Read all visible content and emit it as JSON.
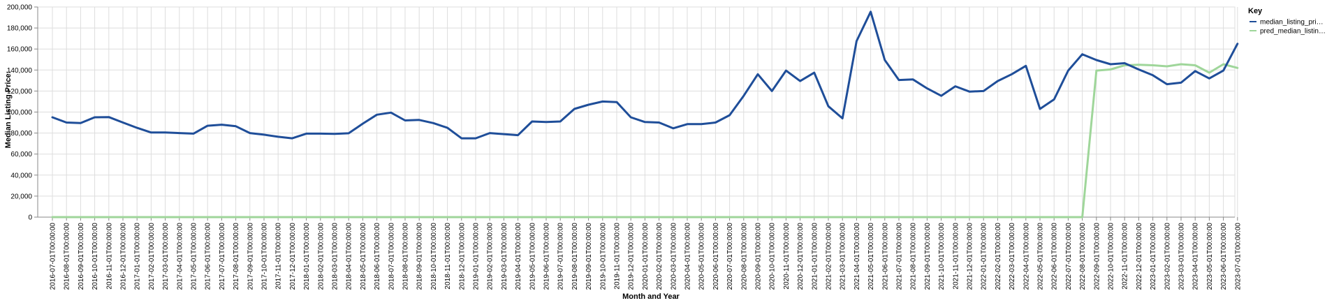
{
  "chart_data": {
    "type": "line",
    "xlabel": "Month and Year",
    "ylabel": "Median Listing Price:",
    "ylim": [
      0,
      200000
    ],
    "yticks": [
      0,
      20000,
      40000,
      60000,
      80000,
      100000,
      120000,
      140000,
      160000,
      180000,
      200000
    ],
    "ytick_labels": [
      "0",
      "20,000",
      "40,000",
      "60,000",
      "80,000",
      "100,000",
      "120,000",
      "140,000",
      "160,000",
      "180,000",
      "200,000"
    ],
    "grid": true,
    "legend": {
      "title": "Key",
      "placement": "top-right"
    },
    "categories": [
      "2016-07-01T00:00:00",
      "2016-08-01T00:00:00",
      "2016-09-01T00:00:00",
      "2016-10-01T00:00:00",
      "2016-11-01T00:00:00",
      "2016-12-01T00:00:00",
      "2017-01-01T00:00:00",
      "2017-02-01T00:00:00",
      "2017-03-01T00:00:00",
      "2017-04-01T00:00:00",
      "2017-05-01T00:00:00",
      "2017-06-01T00:00:00",
      "2017-07-01T00:00:00",
      "2017-08-01T00:00:00",
      "2017-09-01T00:00:00",
      "2017-10-01T00:00:00",
      "2017-11-01T00:00:00",
      "2017-12-01T00:00:00",
      "2018-01-01T00:00:00",
      "2018-02-01T00:00:00",
      "2018-03-01T00:00:00",
      "2018-04-01T00:00:00",
      "2018-05-01T00:00:00",
      "2018-06-01T00:00:00",
      "2018-07-01T00:00:00",
      "2018-08-01T00:00:00",
      "2018-09-01T00:00:00",
      "2018-10-01T00:00:00",
      "2018-11-01T00:00:00",
      "2018-12-01T00:00:00",
      "2019-01-01T00:00:00",
      "2019-02-01T00:00:00",
      "2019-03-01T00:00:00",
      "2019-04-01T00:00:00",
      "2019-05-01T00:00:00",
      "2019-06-01T00:00:00",
      "2019-07-01T00:00:00",
      "2019-08-01T00:00:00",
      "2019-09-01T00:00:00",
      "2019-10-01T00:00:00",
      "2019-11-01T00:00:00",
      "2019-12-01T00:00:00",
      "2020-01-01T00:00:00",
      "2020-02-01T00:00:00",
      "2020-03-01T00:00:00",
      "2020-04-01T00:00:00",
      "2020-05-01T00:00:00",
      "2020-06-01T00:00:00",
      "2020-07-01T00:00:00",
      "2020-08-01T00:00:00",
      "2020-09-01T00:00:00",
      "2020-10-01T00:00:00",
      "2020-11-01T00:00:00",
      "2020-12-01T00:00:00",
      "2021-01-01T00:00:00",
      "2021-02-01T00:00:00",
      "2021-03-01T00:00:00",
      "2021-04-01T00:00:00",
      "2021-05-01T00:00:00",
      "2021-06-01T00:00:00",
      "2021-07-01T00:00:00",
      "2021-08-01T00:00:00",
      "2021-09-01T00:00:00",
      "2021-10-01T00:00:00",
      "2021-11-01T00:00:00",
      "2021-12-01T00:00:00",
      "2022-01-01T00:00:00",
      "2022-02-01T00:00:00",
      "2022-03-01T00:00:00",
      "2022-04-01T00:00:00",
      "2022-05-01T00:00:00",
      "2022-06-01T00:00:00",
      "2022-07-01T00:00:00",
      "2022-08-01T00:00:00",
      "2022-09-01T00:00:00",
      "2022-10-01T00:00:00",
      "2022-11-01T00:00:00",
      "2022-12-01T00:00:00",
      "2023-01-01T00:00:00",
      "2023-02-01T00:00:00",
      "2023-03-01T00:00:00",
      "2023-04-01T00:00:00",
      "2023-05-01T00:00:00",
      "2023-06-01T00:00:00",
      "2023-07-01T00:00:00"
    ],
    "series": [
      {
        "name": "median_listing_pri…",
        "color": "#1f4e99",
        "values": [
          95000,
          90000,
          89500,
          95000,
          95200,
          90000,
          85000,
          80500,
          80500,
          80000,
          79500,
          87000,
          88000,
          86500,
          80000,
          78500,
          76500,
          75000,
          79500,
          79500,
          79200,
          79800,
          89000,
          97500,
          99500,
          92000,
          92500,
          89500,
          85000,
          75000,
          75000,
          80000,
          79000,
          78000,
          91000,
          90500,
          91000,
          103000,
          107000,
          110000,
          109500,
          95000,
          90500,
          90000,
          84500,
          88500,
          88500,
          90000,
          97000,
          115500,
          136000,
          120000,
          139500,
          129500,
          137500,
          105500,
          94000,
          167500,
          195500,
          149500,
          130500,
          131000,
          122500,
          115500,
          124500,
          119500,
          120000,
          129500,
          136000,
          144000,
          103000,
          112000,
          139500,
          155000,
          149500,
          145500,
          146500,
          140500,
          135000,
          126500,
          128000,
          139000,
          132000,
          139500,
          165000
        ]
      },
      {
        "name": "pred_median_listin…",
        "color": "#9fd69a",
        "values": [
          0,
          0,
          0,
          0,
          0,
          0,
          0,
          0,
          0,
          0,
          0,
          0,
          0,
          0,
          0,
          0,
          0,
          0,
          0,
          0,
          0,
          0,
          0,
          0,
          0,
          0,
          0,
          0,
          0,
          0,
          0,
          0,
          0,
          0,
          0,
          0,
          0,
          0,
          0,
          0,
          0,
          0,
          0,
          0,
          0,
          0,
          0,
          0,
          0,
          0,
          0,
          0,
          0,
          0,
          0,
          0,
          0,
          0,
          0,
          0,
          0,
          0,
          0,
          0,
          0,
          0,
          0,
          0,
          0,
          0,
          0,
          0,
          0,
          0,
          139500,
          140500,
          144500,
          145000,
          144500,
          143500,
          145500,
          144500,
          137500,
          145500,
          142000
        ]
      }
    ]
  }
}
